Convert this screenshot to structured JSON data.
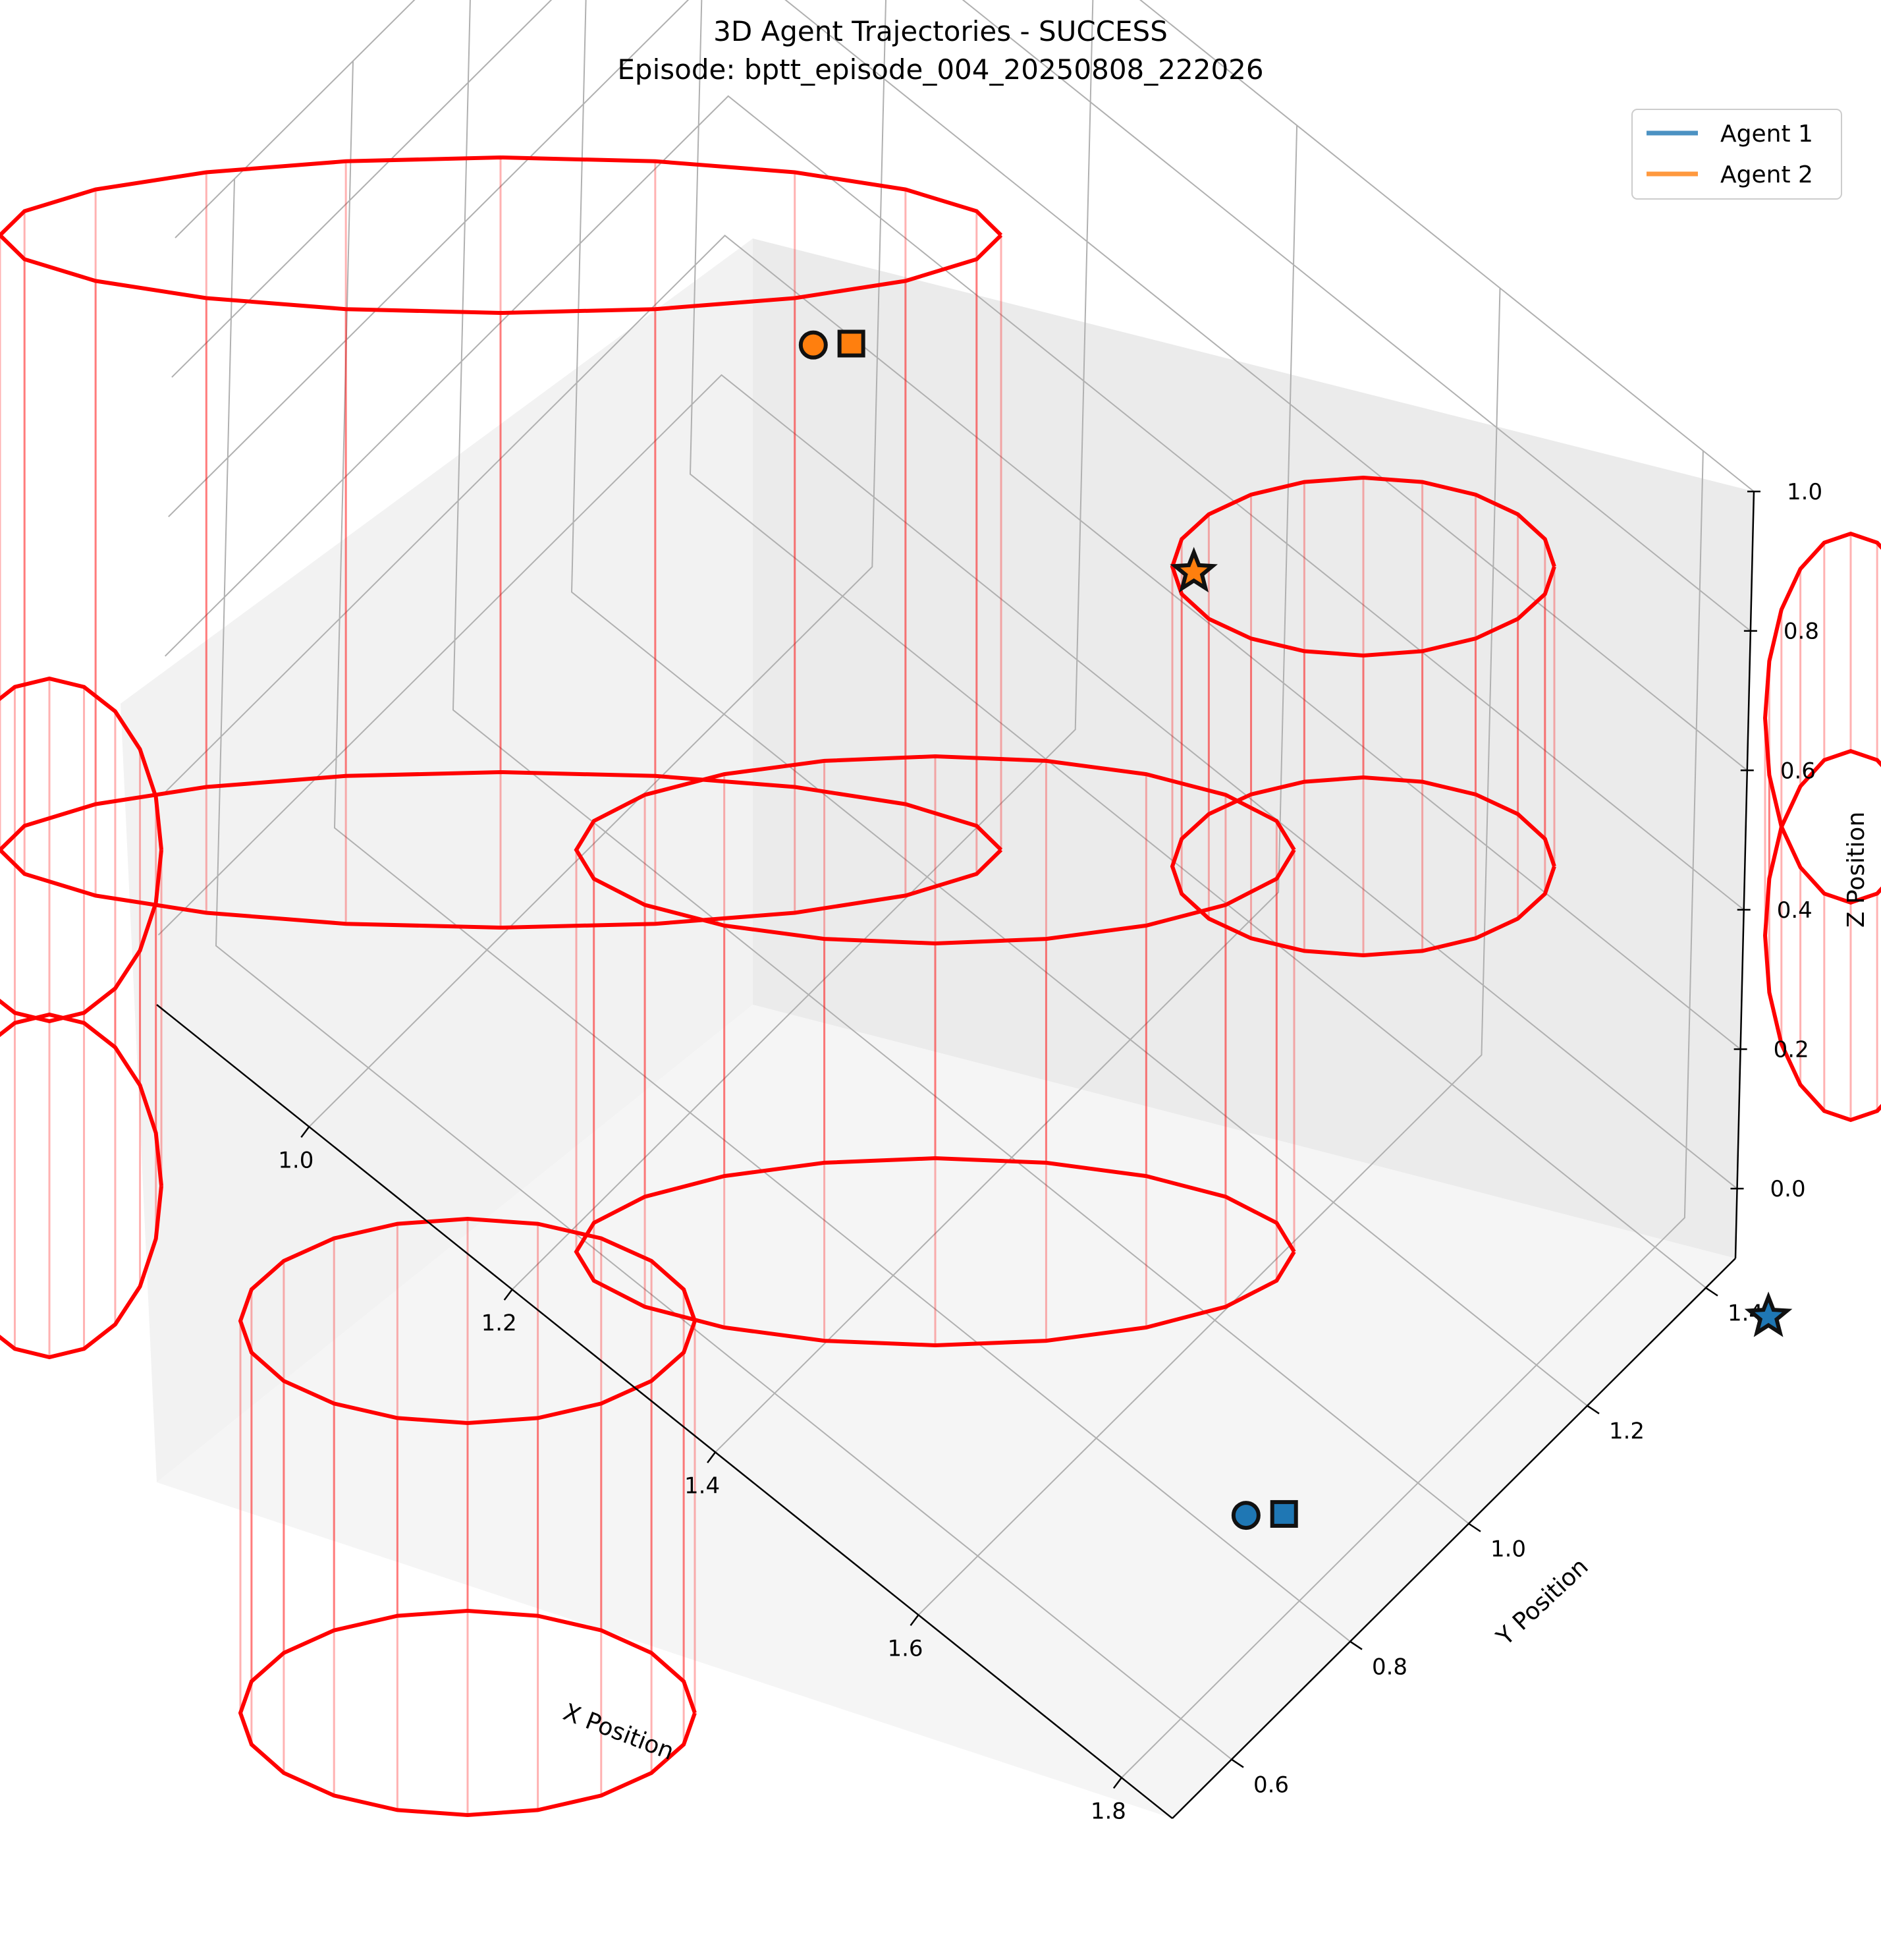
{
  "title": "3D Agent Trajectories - SUCCESS",
  "subtitle": "Episode: bptt_episode_004_20250808_222026",
  "legend": {
    "placement": "top-right",
    "items": [
      {
        "label": "Agent 1",
        "color": "#1f77b4"
      },
      {
        "label": "Agent 2",
        "color": "#ff7f0e"
      }
    ]
  },
  "chart_data": {
    "type": "3d-line",
    "xlabel": "X Position",
    "ylabel": "Y Position",
    "zlabel": "Z Position",
    "x_ticks": [
      "1.0",
      "1.2",
      "1.4",
      "1.6",
      "1.8"
    ],
    "y_ticks": [
      "0.6",
      "0.8",
      "1.0",
      "1.2",
      "1.4"
    ],
    "z_ticks": [
      "0.0",
      "0.2",
      "0.4",
      "0.6",
      "0.8",
      "1.0"
    ],
    "grid": true,
    "obstacle_color": "#ff0000",
    "series": [
      {
        "name": "Agent 1",
        "color": "#1f77b4",
        "start": {
          "x": 1.78,
          "y": 0.74,
          "z": 0.05
        },
        "current": {
          "x": 1.8,
          "y": 0.77,
          "z": 0.05
        },
        "goal": {
          "x": 1.9,
          "y": 1.42,
          "z": -0.1
        }
      },
      {
        "name": "Agent 2",
        "color": "#ff7f0e",
        "start": {
          "x": 1.1,
          "y": 1.16,
          "z": 0.58
        },
        "current": {
          "x": 1.12,
          "y": 1.19,
          "z": 0.58
        },
        "goal": {
          "x": 1.35,
          "y": 1.38,
          "z": 0.36
        }
      }
    ]
  }
}
